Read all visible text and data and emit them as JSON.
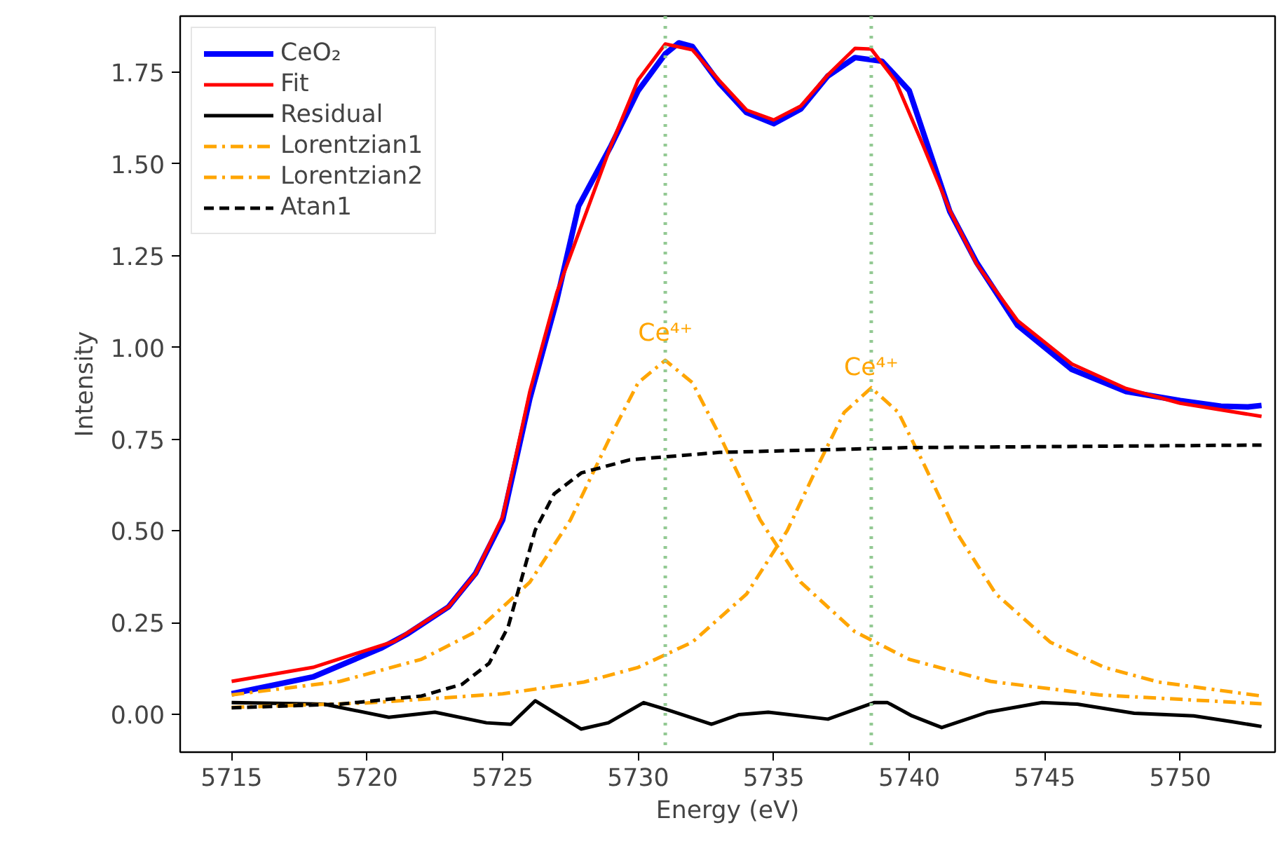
{
  "chart_data": {
    "type": "line",
    "xlabel": "Energy (eV)",
    "ylabel": "Intensity",
    "xlim": [
      5713.1,
      5753.5
    ],
    "ylim": [
      -0.103,
      1.903
    ],
    "xticks": [
      5715,
      5720,
      5725,
      5730,
      5735,
      5740,
      5745,
      5750
    ],
    "yticks": [
      {
        "value": 0,
        "label": "0.00"
      },
      {
        "value": 0.25,
        "label": "0.25"
      },
      {
        "value": 0.5,
        "label": "0.50"
      },
      {
        "value": 0.75,
        "label": "0.75"
      },
      {
        "value": 1.0,
        "label": "1.00"
      },
      {
        "value": 1.25,
        "label": "1.25"
      },
      {
        "value": 1.5,
        "label": "1.50"
      },
      {
        "value": 1.75,
        "label": "1.75"
      }
    ],
    "grid": false,
    "legend": "top left",
    "marker": "none",
    "series": [
      {
        "name": "CeO₂",
        "color": "#0000ff",
        "line_style": "solid",
        "x": [
          5715,
          5718,
          5720.5,
          5721.5,
          5723,
          5724,
          5725,
          5726,
          5727,
          5727.8,
          5729,
          5730,
          5731,
          5731.5,
          5732,
          5733,
          5734,
          5735,
          5736,
          5737,
          5738,
          5739,
          5740,
          5741.5,
          5742.5,
          5744,
          5746,
          5748,
          5750,
          5751.5,
          5752.5,
          5753
        ],
        "values": [
          0.056,
          0.102,
          0.18,
          0.22,
          0.293,
          0.384,
          0.53,
          0.86,
          1.13,
          1.385,
          1.55,
          1.7,
          1.8,
          1.83,
          1.82,
          1.72,
          1.64,
          1.61,
          1.65,
          1.74,
          1.79,
          1.78,
          1.7,
          1.37,
          1.23,
          1.06,
          0.94,
          0.88,
          0.855,
          0.84,
          0.838,
          0.842
        ]
      },
      {
        "name": "Fit",
        "color": "#ff0000",
        "line_style": "solid",
        "x": [
          5715,
          5718,
          5721,
          5723,
          5724,
          5725,
          5726,
          5727,
          5728,
          5729,
          5730,
          5731,
          5732,
          5733,
          5734,
          5735,
          5736,
          5737,
          5738,
          5738.6,
          5739.5,
          5740.5,
          5741.5,
          5742.5,
          5744,
          5746,
          5748,
          5750,
          5753
        ],
        "values": [
          0.09,
          0.128,
          0.199,
          0.293,
          0.384,
          0.539,
          0.879,
          1.15,
          1.351,
          1.551,
          1.729,
          1.827,
          1.811,
          1.727,
          1.647,
          1.62,
          1.658,
          1.743,
          1.815,
          1.813,
          1.726,
          1.553,
          1.373,
          1.226,
          1.073,
          0.955,
          0.888,
          0.848,
          0.812
        ]
      },
      {
        "name": "Residual",
        "color": "#000000",
        "line_style": "solid",
        "x": [
          5715,
          5718.4,
          5720.8,
          5722.5,
          5724.4,
          5725.3,
          5726.2,
          5727.9,
          5728.9,
          5730.2,
          5731.1,
          5732.7,
          5733.7,
          5734.8,
          5737,
          5738.7,
          5739.2,
          5740.1,
          5741.2,
          5742.9,
          5744.9,
          5746.2,
          5748.3,
          5750.5,
          5751.9,
          5753
        ],
        "values": [
          0.032,
          0.028,
          -0.008,
          0.006,
          -0.023,
          -0.027,
          0.037,
          -0.04,
          -0.023,
          0.032,
          0.012,
          -0.027,
          -0.001,
          0.006,
          -0.013,
          0.032,
          0.032,
          -0.004,
          -0.036,
          0.006,
          0.032,
          0.028,
          0.003,
          -0.004,
          -0.02,
          -0.033
        ]
      },
      {
        "name": "Lorentzian1",
        "color": "#ffa500",
        "line_style": "dashdot",
        "x": [
          5715,
          5719,
          5722,
          5724,
          5726,
          5727.5,
          5729,
          5730,
          5731,
          5732,
          5733,
          5734.5,
          5736,
          5738,
          5740,
          5743,
          5747,
          5753
        ],
        "values": [
          0.053,
          0.09,
          0.15,
          0.225,
          0.36,
          0.53,
          0.761,
          0.904,
          0.965,
          0.904,
          0.761,
          0.53,
          0.36,
          0.225,
          0.15,
          0.09,
          0.053,
          0.029
        ]
      },
      {
        "name": "Lorentzian2",
        "color": "#ffa500",
        "line_style": "dashdot",
        "x": [
          5715,
          5720,
          5725,
          5728,
          5730,
          5732,
          5734,
          5735.5,
          5736.6,
          5737.6,
          5738.6,
          5739.6,
          5740.6,
          5741.7,
          5743.2,
          5745.2,
          5747.2,
          5749.2,
          5753
        ],
        "values": [
          0.019,
          0.031,
          0.056,
          0.088,
          0.128,
          0.197,
          0.328,
          0.501,
          0.673,
          0.823,
          0.89,
          0.823,
          0.673,
          0.501,
          0.328,
          0.197,
          0.128,
          0.088,
          0.05
        ]
      },
      {
        "name": "Atan1",
        "color": "#000000",
        "line_style": "dashed",
        "x": [
          5715,
          5719,
          5722,
          5723.5,
          5724.5,
          5725.2,
          5725.7,
          5726.2,
          5726.9,
          5727.9,
          5729.7,
          5733,
          5740,
          5753
        ],
        "values": [
          0.018,
          0.028,
          0.05,
          0.082,
          0.139,
          0.238,
          0.37,
          0.502,
          0.601,
          0.658,
          0.694,
          0.714,
          0.727,
          0.734
        ]
      }
    ],
    "ref_lines": [
      {
        "axis": "x",
        "value": 5731.0,
        "color": "#93c993",
        "line_style": "dotted"
      },
      {
        "axis": "x",
        "value": 5738.6,
        "color": "#93c993",
        "line_style": "dotted"
      }
    ],
    "annotations": [
      {
        "text": "Ce⁴⁺",
        "x": 5731.0,
        "y": 1.0
      },
      {
        "text": "Ce⁴⁺",
        "x": 5738.6,
        "y": 0.905
      }
    ]
  }
}
